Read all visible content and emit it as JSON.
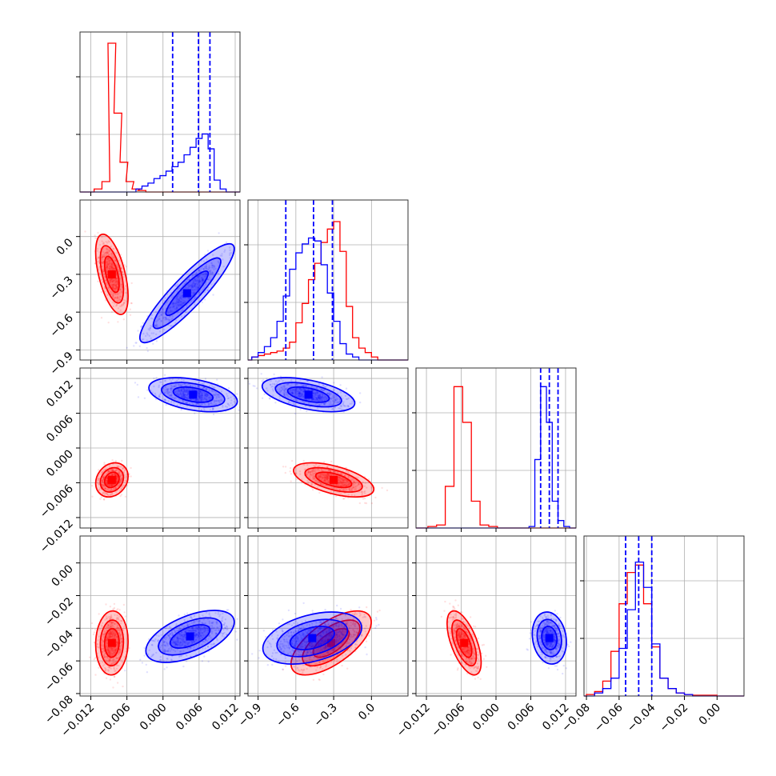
{
  "chart_data": {
    "type": "corner",
    "grid": true,
    "series": [
      {
        "name": "",
        "color": "#ff0000"
      },
      {
        "name": "",
        "color": "#0000ff"
      }
    ],
    "ticks": {
      "p0": [
        "-0.012",
        "-0.006",
        "0.000",
        "0.006",
        "0.012"
      ],
      "p1": [
        "-0.9",
        "-0.6",
        "-0.3",
        "0.0"
      ],
      "p2": [
        "-0.012",
        "-0.006",
        "0.000",
        "0.006",
        "0.012"
      ],
      "p3": [
        "-0.08",
        "-0.06",
        "-0.04",
        "-0.02",
        "0.00"
      ]
    },
    "ranges": {
      "p0": [
        -0.0138,
        0.0128
      ],
      "p1": [
        -0.98,
        0.29
      ],
      "p2": [
        -0.0138,
        0.0138
      ],
      "p3": [
        -0.0815,
        0.0165
      ]
    },
    "marginals": [
      {
        "param": "p0",
        "quantile_lines": [
          0.0016,
          0.0059,
          0.0078
        ],
        "quantile_color": "#0000ff",
        "hist": [
          {
            "series": 0,
            "bins": [
              [
                -0.0108,
                0.02
              ],
              [
                -0.0095,
                0.07
              ],
              [
                -0.0085,
                1.0
              ],
              [
                -0.0075,
                0.53
              ],
              [
                -0.0065,
                0.2
              ],
              [
                -0.0055,
                0.07
              ],
              [
                -0.0045,
                0.02
              ],
              [
                -0.0035,
                0.01
              ]
            ]
          },
          {
            "series": 1,
            "bins": [
              [
                -0.004,
                0.02
              ],
              [
                -0.003,
                0.04
              ],
              [
                -0.002,
                0.06
              ],
              [
                -0.001,
                0.09
              ],
              [
                0.0,
                0.11
              ],
              [
                0.001,
                0.14
              ],
              [
                0.002,
                0.17
              ],
              [
                0.003,
                0.2
              ],
              [
                0.004,
                0.25
              ],
              [
                0.005,
                0.3
              ],
              [
                0.006,
                0.36
              ],
              [
                0.007,
                0.39
              ],
              [
                0.008,
                0.29
              ],
              [
                0.009,
                0.08
              ],
              [
                0.01,
                0.02
              ]
            ]
          }
        ]
      },
      {
        "param": "p1",
        "quantile_lines": [
          -0.68,
          -0.46,
          -0.31
        ],
        "quantile_color": "#0000ff",
        "hist": [
          {
            "series": 0,
            "bins": [
              [
                -0.925,
                0.02
              ],
              [
                -0.875,
                0.03
              ],
              [
                -0.825,
                0.04
              ],
              [
                -0.775,
                0.05
              ],
              [
                -0.725,
                0.06
              ],
              [
                -0.675,
                0.08
              ],
              [
                -0.625,
                0.12
              ],
              [
                -0.575,
                0.25
              ],
              [
                -0.525,
                0.38
              ],
              [
                -0.475,
                0.54
              ],
              [
                -0.425,
                0.65
              ],
              [
                -0.375,
                0.79
              ],
              [
                -0.325,
                0.88
              ],
              [
                -0.275,
                0.93
              ],
              [
                -0.225,
                0.73
              ],
              [
                -0.175,
                0.36
              ],
              [
                -0.125,
                0.15
              ],
              [
                -0.075,
                0.08
              ],
              [
                -0.025,
                0.05
              ],
              [
                0.025,
                0.02
              ]
            ]
          },
          {
            "series": 1,
            "bins": [
              [
                -0.925,
                0.02
              ],
              [
                -0.875,
                0.05
              ],
              [
                -0.825,
                0.09
              ],
              [
                -0.775,
                0.15
              ],
              [
                -0.725,
                0.26
              ],
              [
                -0.675,
                0.43
              ],
              [
                -0.625,
                0.61
              ],
              [
                -0.575,
                0.72
              ],
              [
                -0.525,
                0.78
              ],
              [
                -0.475,
                0.82
              ],
              [
                -0.425,
                0.8
              ],
              [
                -0.375,
                0.64
              ],
              [
                -0.325,
                0.45
              ],
              [
                -0.275,
                0.26
              ],
              [
                -0.225,
                0.11
              ],
              [
                -0.175,
                0.04
              ],
              [
                -0.125,
                0.02
              ]
            ]
          }
        ]
      },
      {
        "param": "p2",
        "quantile_lines": [
          0.0077,
          0.0092,
          0.0107
        ],
        "quantile_color": "#0000ff",
        "hist": [
          {
            "series": 0,
            "bins": [
              [
                -0.011,
                0.01
              ],
              [
                -0.0095,
                0.02
              ],
              [
                -0.008,
                0.28
              ],
              [
                -0.0065,
                0.95
              ],
              [
                -0.005,
                0.71
              ],
              [
                -0.0035,
                0.18
              ],
              [
                -0.002,
                0.02
              ],
              [
                -0.0005,
                0.01
              ]
            ]
          },
          {
            "series": 1,
            "bins": [
              [
                0.0062,
                0.01
              ],
              [
                0.0072,
                0.46
              ],
              [
                0.0082,
                0.95
              ],
              [
                0.0092,
                0.71
              ],
              [
                0.0102,
                0.18
              ],
              [
                0.0112,
                0.05
              ],
              [
                0.0122,
                0.01
              ]
            ]
          }
        ]
      },
      {
        "param": "p3",
        "quantile_lines": [
          -0.056,
          -0.048,
          -0.04
        ],
        "quantile_color": "#0000ff",
        "hist": [
          {
            "series": 0,
            "bins": [
              [
                -0.0775,
                0.01
              ],
              [
                -0.0725,
                0.03
              ],
              [
                -0.0675,
                0.1
              ],
              [
                -0.0625,
                0.3
              ],
              [
                -0.0575,
                0.62
              ],
              [
                -0.0525,
                0.83
              ],
              [
                -0.0475,
                0.88
              ],
              [
                -0.0425,
                0.62
              ],
              [
                -0.0375,
                0.33
              ],
              [
                -0.0325,
                0.12
              ],
              [
                -0.0275,
                0.05
              ],
              [
                -0.0225,
                0.02
              ],
              [
                -0.0175,
                0.01
              ],
              [
                -0.0125,
                0.005
              ],
              [
                -0.0075,
                0.005
              ],
              [
                -0.0025,
                0.005
              ]
            ]
          },
          {
            "series": 1,
            "bins": [
              [
                -0.0725,
                0.02
              ],
              [
                -0.0675,
                0.05
              ],
              [
                -0.0625,
                0.12
              ],
              [
                -0.0575,
                0.32
              ],
              [
                -0.0525,
                0.58
              ],
              [
                -0.0475,
                0.9
              ],
              [
                -0.0425,
                0.73
              ],
              [
                -0.0375,
                0.35
              ],
              [
                -0.0325,
                0.12
              ],
              [
                -0.0275,
                0.05
              ],
              [
                -0.0225,
                0.02
              ],
              [
                -0.0175,
                0.01
              ]
            ]
          }
        ]
      }
    ],
    "joints": [
      {
        "x": "p0",
        "y": "p1",
        "clouds": [
          {
            "series": 0,
            "mean": [
              -0.0085,
              -0.3
            ],
            "sd": [
              0.0011,
              0.13
            ],
            "corr": -0.55
          },
          {
            "series": 1,
            "mean": [
              0.004,
              -0.45
            ],
            "sd": [
              0.0032,
              0.16
            ],
            "corr": 0.9
          }
        ]
      },
      {
        "x": "p0",
        "y": "p2",
        "clouds": [
          {
            "series": 0,
            "mean": [
              -0.0085,
              -0.0055
            ],
            "sd": [
              0.0011,
              0.0012
            ],
            "corr": 0.2
          },
          {
            "series": 1,
            "mean": [
              0.005,
              0.0092
            ],
            "sd": [
              0.003,
              0.0012
            ],
            "corr": -0.4
          }
        ]
      },
      {
        "x": "p0",
        "y": "p3",
        "clouds": [
          {
            "series": 0,
            "mean": [
              -0.0085,
              -0.049
            ],
            "sd": [
              0.0011,
              0.008
            ],
            "corr": 0.05
          },
          {
            "series": 1,
            "mean": [
              0.0045,
              -0.045
            ],
            "sd": [
              0.003,
              0.0065
            ],
            "corr": 0.55
          }
        ]
      },
      {
        "x": "p1",
        "y": "p2",
        "clouds": [
          {
            "series": 0,
            "mean": [
              -0.3,
              -0.0055
            ],
            "sd": [
              0.13,
              0.0012
            ],
            "corr": -0.55
          },
          {
            "series": 1,
            "mean": [
              -0.5,
              0.0092
            ],
            "sd": [
              0.15,
              0.0012
            ],
            "corr": -0.5
          }
        ]
      },
      {
        "x": "p1",
        "y": "p3",
        "clouds": [
          {
            "series": 0,
            "mean": [
              -0.32,
              -0.049
            ],
            "sd": [
              0.13,
              0.008
            ],
            "corr": 0.65
          },
          {
            "series": 1,
            "mean": [
              -0.47,
              -0.046
            ],
            "sd": [
              0.16,
              0.0065
            ],
            "corr": 0.4
          }
        ]
      },
      {
        "x": "p2",
        "y": "p3",
        "clouds": [
          {
            "series": 0,
            "mean": [
              -0.0055,
              -0.049
            ],
            "sd": [
              0.0012,
              0.008
            ],
            "corr": -0.6
          },
          {
            "series": 1,
            "mean": [
              0.0092,
              -0.046
            ],
            "sd": [
              0.0012,
              0.0065
            ],
            "corr": -0.15
          }
        ]
      }
    ]
  }
}
